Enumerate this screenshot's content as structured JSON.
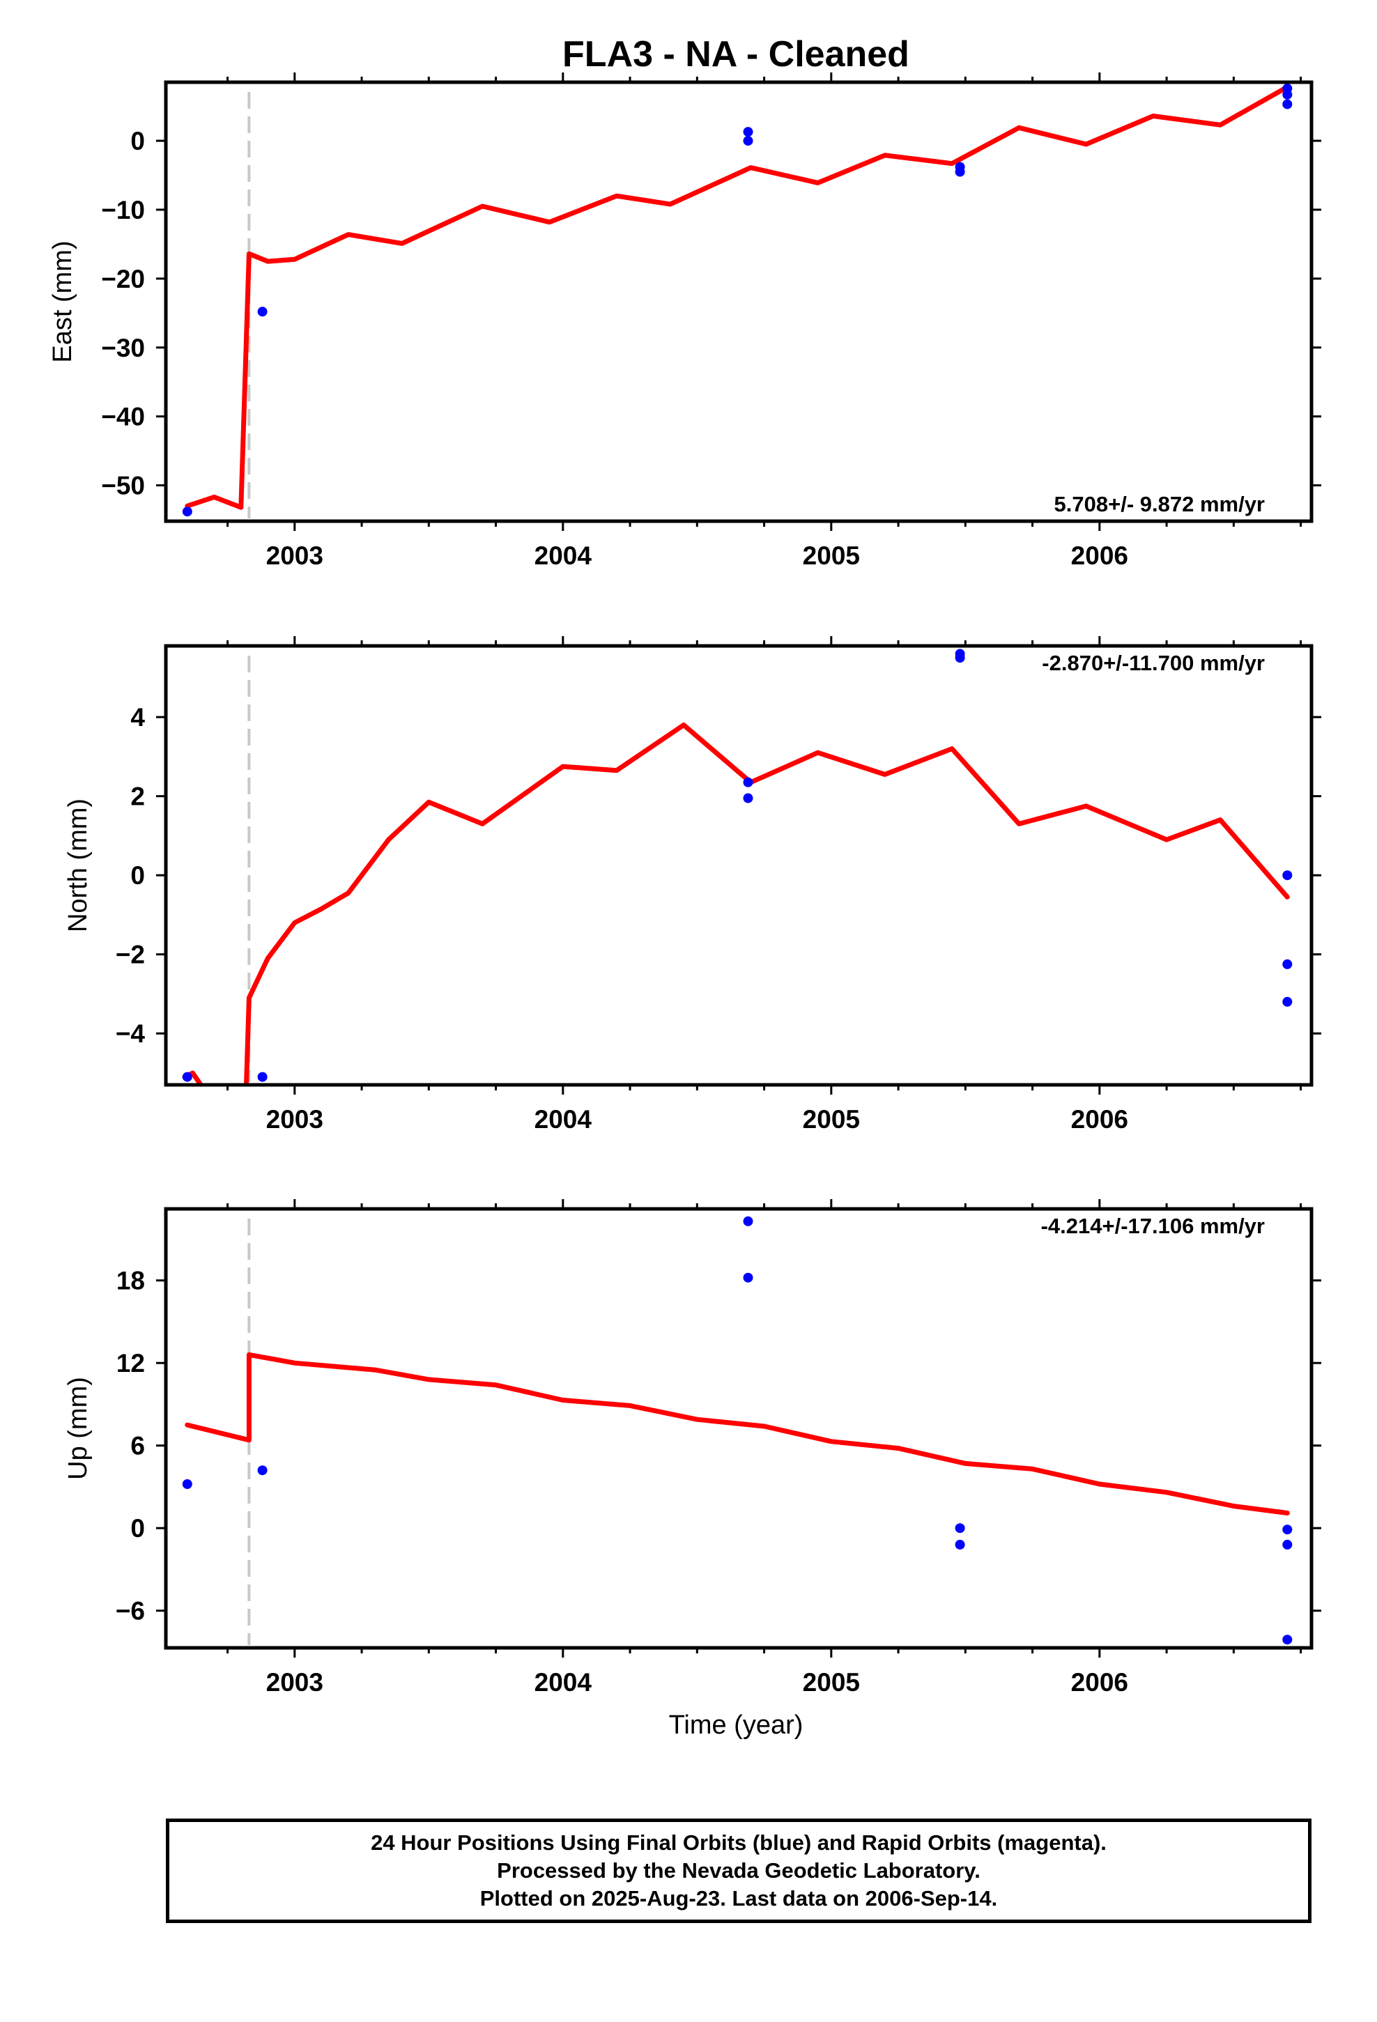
{
  "title": "FLA3  - NA - Cleaned",
  "xlabel": "Time (year)",
  "footer": {
    "line1": "24 Hour Positions Using Final Orbits (blue) and Rapid Orbits (magenta).",
    "line2": "Processed by the Nevada Geodetic Laboratory.",
    "line3": "Plotted on 2025-Aug-23. Last data on 2006-Sep-14."
  },
  "colors": {
    "points": "#0000ff",
    "model": "#ff0000",
    "step_line": "#c8c8c8",
    "frame": "#000000"
  },
  "chart_data": [
    {
      "type": "scatter",
      "name": "east",
      "ylabel": "East (mm)",
      "rate_text": "5.708+/- 9.872 mm/yr",
      "rate_position": "bottom-right",
      "xlim": [
        2002.52,
        2006.79
      ],
      "ylim": [
        -55.2,
        8.5
      ],
      "xticks": [
        2003,
        2004,
        2005,
        2006
      ],
      "yticks": [
        -50,
        -40,
        -30,
        -20,
        -10,
        0
      ],
      "step_x": 2002.83,
      "points": [
        [
          2002.6,
          -53.8
        ],
        [
          2002.88,
          -24.8
        ],
        [
          2004.69,
          1.3
        ],
        [
          2004.69,
          0.0
        ],
        [
          2005.48,
          -3.8
        ],
        [
          2005.48,
          -4.5
        ],
        [
          2006.7,
          7.6
        ],
        [
          2006.7,
          6.7
        ],
        [
          2006.7,
          5.3
        ]
      ],
      "model": [
        [
          2002.6,
          -53.0
        ],
        [
          2002.7,
          -51.7
        ],
        [
          2002.8,
          -53.2
        ],
        [
          2002.83,
          -16.4
        ],
        [
          2002.9,
          -17.5
        ],
        [
          2003.0,
          -17.2
        ],
        [
          2003.2,
          -13.6
        ],
        [
          2003.4,
          -14.9
        ],
        [
          2003.7,
          -9.5
        ],
        [
          2003.95,
          -11.8
        ],
        [
          2004.2,
          -8.0
        ],
        [
          2004.4,
          -9.2
        ],
        [
          2004.7,
          -3.9
        ],
        [
          2004.95,
          -6.1
        ],
        [
          2005.2,
          -2.1
        ],
        [
          2005.45,
          -3.3
        ],
        [
          2005.7,
          1.9
        ],
        [
          2005.95,
          -0.5
        ],
        [
          2006.2,
          3.6
        ],
        [
          2006.45,
          2.3
        ],
        [
          2006.7,
          7.8
        ]
      ]
    },
    {
      "type": "scatter",
      "name": "north",
      "ylabel": "North (mm)",
      "rate_text": "-2.870+/-11.700 mm/yr",
      "rate_position": "top-right",
      "xlim": [
        2002.52,
        2006.79
      ],
      "ylim": [
        -5.3,
        5.8
      ],
      "xticks": [
        2003,
        2004,
        2005,
        2006
      ],
      "yticks": [
        -4,
        -2,
        0,
        2,
        4
      ],
      "step_x": 2002.83,
      "points": [
        [
          2002.6,
          -5.1
        ],
        [
          2002.88,
          -5.1
        ],
        [
          2004.69,
          2.35
        ],
        [
          2004.69,
          1.95
        ],
        [
          2005.48,
          5.6
        ],
        [
          2005.48,
          5.5
        ],
        [
          2006.7,
          0.0
        ],
        [
          2006.7,
          -2.25
        ],
        [
          2006.7,
          -3.2
        ]
      ],
      "model_segments": [
        [
          [
            2002.59,
            -5.1
          ],
          [
            2002.62,
            -5.0
          ],
          [
            2002.65,
            -5.3
          ]
        ],
        [
          [
            2002.82,
            -5.3
          ],
          [
            2002.83,
            -3.1
          ],
          [
            2002.9,
            -2.1
          ],
          [
            2003.0,
            -1.2
          ],
          [
            2003.1,
            -0.85
          ],
          [
            2003.2,
            -0.45
          ],
          [
            2003.35,
            0.9
          ],
          [
            2003.5,
            1.85
          ],
          [
            2003.7,
            1.3
          ],
          [
            2004.0,
            2.75
          ],
          [
            2004.2,
            2.65
          ],
          [
            2004.45,
            3.8
          ],
          [
            2004.7,
            2.35
          ],
          [
            2004.95,
            3.1
          ],
          [
            2005.2,
            2.55
          ],
          [
            2005.45,
            3.2
          ],
          [
            2005.7,
            1.3
          ],
          [
            2005.95,
            1.75
          ],
          [
            2006.25,
            0.9
          ],
          [
            2006.45,
            1.4
          ],
          [
            2006.7,
            -0.55
          ]
        ]
      ]
    },
    {
      "type": "scatter",
      "name": "up",
      "ylabel": "Up (mm)",
      "rate_text": "-4.214+/-17.106 mm/yr",
      "rate_position": "top-right",
      "xlim": [
        2002.52,
        2006.79
      ],
      "ylim": [
        -8.7,
        23.2
      ],
      "xticks": [
        2003,
        2004,
        2005,
        2006
      ],
      "yticks": [
        -6,
        0,
        6,
        12,
        18
      ],
      "step_x": 2002.83,
      "points": [
        [
          2002.6,
          3.2
        ],
        [
          2002.88,
          4.2
        ],
        [
          2004.69,
          22.3
        ],
        [
          2004.69,
          18.2
        ],
        [
          2005.48,
          0.0
        ],
        [
          2005.48,
          -1.2
        ],
        [
          2006.7,
          -0.1
        ],
        [
          2006.7,
          -1.2
        ],
        [
          2006.7,
          -8.1
        ]
      ],
      "model": [
        [
          2002.6,
          7.5
        ],
        [
          2002.83,
          6.4
        ],
        [
          2002.83,
          12.6
        ],
        [
          2003.0,
          12.0
        ],
        [
          2003.3,
          11.5
        ],
        [
          2003.5,
          10.8
        ],
        [
          2003.75,
          10.4
        ],
        [
          2004.0,
          9.3
        ],
        [
          2004.25,
          8.9
        ],
        [
          2004.5,
          7.9
        ],
        [
          2004.75,
          7.4
        ],
        [
          2005.0,
          6.3
        ],
        [
          2005.25,
          5.8
        ],
        [
          2005.5,
          4.7
        ],
        [
          2005.75,
          4.3
        ],
        [
          2006.0,
          3.2
        ],
        [
          2006.25,
          2.6
        ],
        [
          2006.5,
          1.6
        ],
        [
          2006.7,
          1.1
        ]
      ]
    }
  ]
}
